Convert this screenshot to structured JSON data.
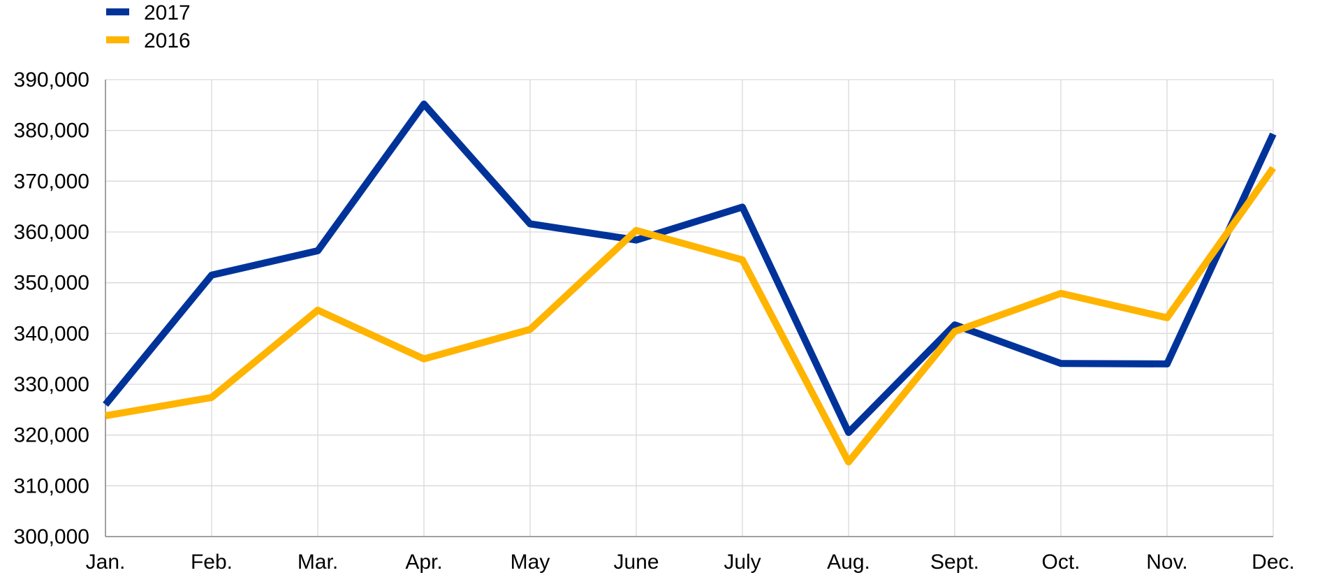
{
  "chart_data": {
    "type": "line",
    "title": "",
    "xlabel": "",
    "ylabel": "",
    "categories": [
      "Jan.",
      "Feb.",
      "Mar.",
      "Apr.",
      "May",
      "June",
      "July",
      "Aug.",
      "Sept.",
      "Oct.",
      "Nov.",
      "Dec."
    ],
    "ylim": [
      300000,
      390000
    ],
    "yticks": [
      300000,
      310000,
      320000,
      330000,
      340000,
      350000,
      360000,
      370000,
      380000,
      390000
    ],
    "ytick_labels": [
      "300,000",
      "310,000",
      "320,000",
      "330,000",
      "340,000",
      "350,000",
      "360,000",
      "370,000",
      "380,000",
      "390,000"
    ],
    "grid": true,
    "legend_position": "top-left",
    "series": [
      {
        "name": "2017",
        "color": "#003399",
        "values": [
          326000,
          351500,
          356300,
          385200,
          361600,
          358400,
          364900,
          320500,
          341700,
          334100,
          334000,
          379300
        ]
      },
      {
        "name": "2016",
        "color": "#ffb400",
        "values": [
          323800,
          327400,
          344600,
          335000,
          340800,
          360300,
          354500,
          314700,
          340400,
          347900,
          343100,
          372600
        ]
      }
    ]
  }
}
